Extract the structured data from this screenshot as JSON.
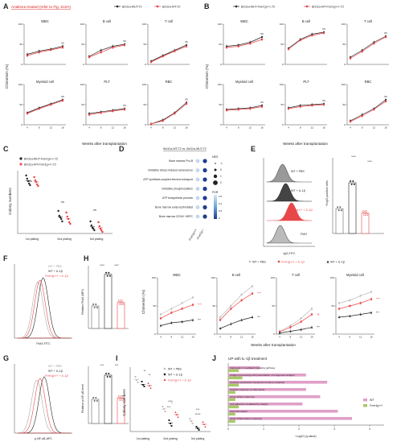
{
  "colors": {
    "black": "#222222",
    "red": "#e8474a",
    "grey": "#aaaaaa",
    "pink": "#e0a0c8",
    "green": "#a9c86b",
    "anakinra": "#d62020",
    "navy": "#1f3d8c"
  },
  "labels": {
    "A": "A",
    "B": "B",
    "C": "C",
    "D": "D",
    "E": "E",
    "F": "F",
    "G": "G",
    "H": "H",
    "I": "I",
    "J": "J"
  },
  "panelA": {
    "title": "Anakinra treated (refer to Fig. S10A)",
    "legend": [
      "Bcl11a-MUT;T2",
      "Bcl11a-WT;T2"
    ],
    "ylabel": "Chimerism (%)",
    "xlabel": "Weeks after transplantation",
    "subplots": [
      "WBC",
      "B cell",
      "T cell",
      "Myeloid cell",
      "PLT",
      "RBC"
    ]
  },
  "panelB": {
    "legend": [
      "Bcl11a-MUT-Fcer1g+/+;T2",
      "Bcl11a-WT-Fcer1g+/+;T2"
    ],
    "ylabel": "Chimerism (%)",
    "xlabel": "Weeks after transplantation",
    "subplots": [
      "WBC",
      "B cell",
      "T cell",
      "Myeloid cell",
      "PLT",
      "RBC"
    ]
  },
  "xticks": [
    "4",
    "8",
    "12",
    "16"
  ],
  "ns": "ns",
  "panelC": {
    "legend": [
      "Bcl11a-MUT-Fcer1g+/+;T2",
      "Bcl11a-WT-Fcer1g+/+;T2"
    ],
    "ylabel": "Colony numbers",
    "groups": [
      "1st plating",
      "2nd plating",
      "3rd plating"
    ]
  },
  "panelD": {
    "title": "Bcl11a-WT;T2 vs. Bcl11a-MUT;T2",
    "terms": [
      "Bone marrow Pro-B",
      "Oxidative stress-induced senescence",
      "ATP synthesis-coupled electron transport",
      "Oxidative phosphorylation",
      "ATP biosynthetic process",
      "Bone marrow early erythroblast",
      "Bone marrow CD34+ HSPC"
    ],
    "cols": [
      "Fcer1g+/+",
      "Fcer1g-/-"
    ],
    "nes_title": "NES",
    "nes_vals": [
      "-1",
      "0",
      "1",
      "2"
    ],
    "fdr_title": "FDR",
    "fdr_vals": [
      "0.6",
      "0.4",
      "0.2",
      "0"
    ]
  },
  "panelE": {
    "legend": [
      "WT + PBS",
      "WT + IL-1β",
      "Fcer1g+/+ + IL-1β",
      "FMO"
    ],
    "xlabel": "IgG-FITC",
    "ylabel": "% IgG-positive cells",
    "stars": [
      "****",
      "****"
    ],
    "cats": [
      "WT + PBS",
      "WT + IL-1β",
      "Fcer1g+/+ + IL-1β"
    ]
  },
  "panelF": {
    "legend": [
      "WT + PBS",
      "WT + IL-1β",
      "Fcer1g+/+ + IL-1β"
    ],
    "xlabel": "Flut3-FITC",
    "ylabel": "Relative Flut3 (MFI)",
    "stars": [
      "****",
      "****"
    ]
  },
  "panelG": {
    "legend": [
      "WT + PBS",
      "WT + IL-1β",
      "Fcer1g+/+ + IL-1β"
    ],
    "xlabel": "p-NF-κB-APC",
    "ylabel": "Relative p-NF-κB level",
    "stars": [
      "***",
      "***"
    ]
  },
  "panelH": {
    "legend": [
      "WT + PBS",
      "Fcer1g+/+ + IL-1β",
      "WT + IL-1β"
    ],
    "subplots": [
      "WBC",
      "B cell",
      "T cell",
      "Myeloid cell"
    ],
    "ylabel": "Chimerism (%)",
    "xlabel": "Weeks after transplantation"
  },
  "panelI": {
    "legend": [
      "WT + PBS",
      "WT + IL-1β",
      "Fcer1g+/+ + IL-1β"
    ],
    "ylabel": "Colony numbers",
    "groups": [
      "1st plating",
      "2nd plating",
      "3rd plating"
    ],
    "stars": [
      "**",
      "**",
      "****",
      "***",
      "*",
      "***",
      "*****"
    ]
  },
  "panelJ": {
    "title": "UP with IL-1β treatment",
    "terms": [
      "Interleukin-1-mediated signaling pathway",
      "Antigen processing and presentation of exogenous antigen",
      "Cytokine production involved in immune response",
      "Cellular response to chemokine",
      "Acute-phase response",
      "Cell adhesion mediated by integrin",
      "Cell chemotaxis",
      "Acute inflammatory response"
    ],
    "legend": [
      "WT",
      "Fcer1g+/+"
    ],
    "xlabel": "−Log10 (q value)",
    "xticks": [
      "0",
      "1",
      "2",
      "3",
      "4"
    ],
    "wt": [
      0.9,
      2.2,
      2.8,
      2.2,
      2.6,
      2.1,
      3.1,
      3.5
    ],
    "fcer": [
      0.3,
      0.4,
      0.3,
      0.2,
      0.2,
      0.3,
      0.2,
      0.2
    ]
  }
}
